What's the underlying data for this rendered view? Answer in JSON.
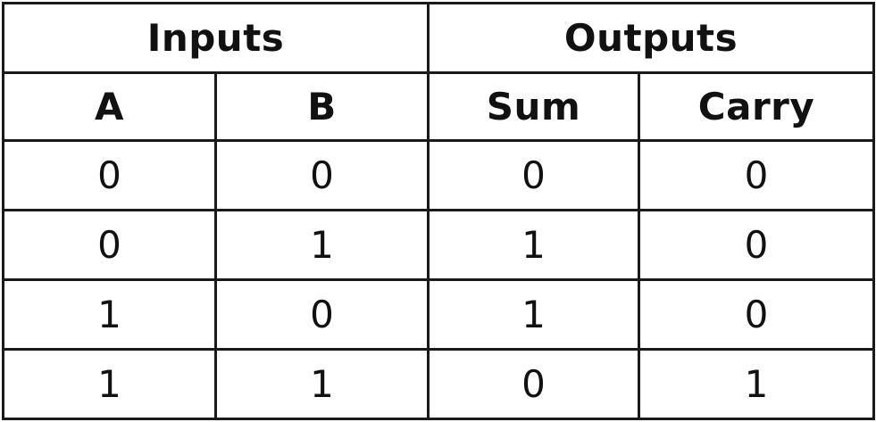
{
  "table": {
    "group_headers": {
      "inputs": "Inputs",
      "outputs": "Outputs"
    },
    "columns": [
      "A",
      "B",
      "Sum",
      "Carry"
    ],
    "rows": [
      [
        "0",
        "0",
        "0",
        "0"
      ],
      [
        "0",
        "1",
        "1",
        "0"
      ],
      [
        "1",
        "0",
        "1",
        "0"
      ],
      [
        "1",
        "1",
        "0",
        "1"
      ]
    ]
  }
}
